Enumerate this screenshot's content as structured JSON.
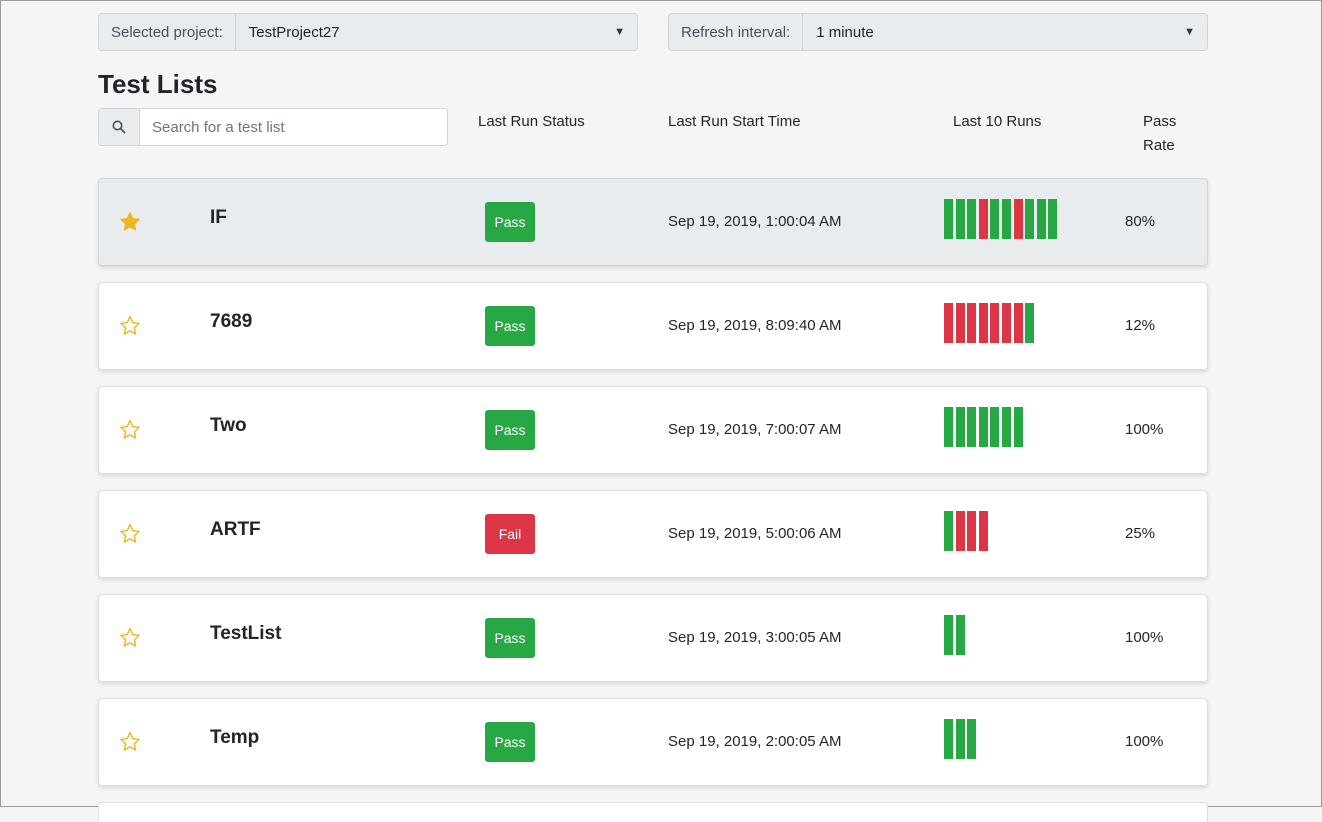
{
  "project_select": {
    "prefix": "Selected project:",
    "value": "TestProject27"
  },
  "refresh_select": {
    "prefix": "Refresh interval:",
    "value": "1 minute"
  },
  "page_title": "Test Lists",
  "search": {
    "placeholder": "Search for a test list"
  },
  "columns": {
    "status": "Last Run Status",
    "start": "Last Run Start Time",
    "runs": "Last 10 Runs",
    "pass_rate": "Pass Rate"
  },
  "colors": {
    "pass": "#28a745",
    "fail": "#dc3545",
    "star": "#f0b51c"
  },
  "rows": [
    {
      "favorite": true,
      "name": "IF",
      "status": "Pass",
      "start": "Sep 19, 2019, 1:00:04 AM",
      "runs": [
        "pass",
        "pass",
        "pass",
        "fail",
        "pass",
        "pass",
        "fail",
        "pass",
        "pass",
        "pass"
      ],
      "pass_rate": "80%"
    },
    {
      "favorite": false,
      "name": "7689",
      "status": "Pass",
      "start": "Sep 19, 2019, 8:09:40 AM",
      "runs": [
        "fail",
        "fail",
        "fail",
        "fail",
        "fail",
        "fail",
        "fail",
        "pass"
      ],
      "pass_rate": "12%"
    },
    {
      "favorite": false,
      "name": "Two",
      "status": "Pass",
      "start": "Sep 19, 2019, 7:00:07 AM",
      "runs": [
        "pass",
        "pass",
        "pass",
        "pass",
        "pass",
        "pass",
        "pass"
      ],
      "pass_rate": "100%"
    },
    {
      "favorite": false,
      "name": "ARTF",
      "status": "Fail",
      "start": "Sep 19, 2019, 5:00:06 AM",
      "runs": [
        "pass",
        "fail",
        "fail",
        "fail"
      ],
      "pass_rate": "25%"
    },
    {
      "favorite": false,
      "name": "TestList",
      "status": "Pass",
      "start": "Sep 19, 2019, 3:00:05 AM",
      "runs": [
        "pass",
        "pass"
      ],
      "pass_rate": "100%"
    },
    {
      "favorite": false,
      "name": "Temp",
      "status": "Pass",
      "start": "Sep 19, 2019, 2:00:05 AM",
      "runs": [
        "pass",
        "pass",
        "pass"
      ],
      "pass_rate": "100%"
    }
  ]
}
